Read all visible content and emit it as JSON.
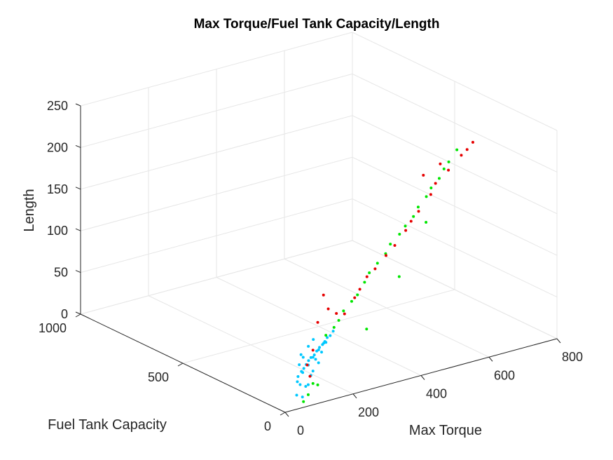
{
  "chart_data": {
    "type": "scatter3d",
    "title": "Max Torque/Fuel Tank Capacity/Length",
    "xlabel": "Max Torque",
    "ylabel": "Fuel Tank Capacity",
    "zlabel": "Length",
    "xlim": [
      0,
      800
    ],
    "ylim": [
      0,
      1000
    ],
    "zlim": [
      0,
      250
    ],
    "xticks": [
      "0",
      "200",
      "400",
      "600",
      "800"
    ],
    "yticks": [
      "0",
      "500",
      "1000"
    ],
    "zticks": [
      "0",
      "50",
      "100",
      "150",
      "200",
      "250"
    ],
    "grid": true,
    "series": [
      {
        "color": "#00c8ff",
        "points": [
          [
            60,
            20,
            40
          ],
          [
            80,
            30,
            45
          ],
          [
            100,
            40,
            50
          ],
          [
            120,
            45,
            55
          ],
          [
            140,
            50,
            60
          ],
          [
            50,
            20,
            35
          ],
          [
            70,
            25,
            42
          ],
          [
            90,
            35,
            48
          ],
          [
            110,
            40,
            52
          ],
          [
            130,
            48,
            58
          ],
          [
            150,
            55,
            62
          ],
          [
            160,
            60,
            65
          ],
          [
            45,
            15,
            30
          ],
          [
            65,
            22,
            38
          ],
          [
            85,
            28,
            44
          ],
          [
            105,
            38,
            50
          ],
          [
            125,
            44,
            56
          ],
          [
            145,
            52,
            61
          ],
          [
            55,
            18,
            25
          ],
          [
            75,
            24,
            20
          ],
          [
            95,
            32,
            30
          ],
          [
            115,
            42,
            46
          ],
          [
            135,
            46,
            52
          ],
          [
            155,
            58,
            60
          ],
          [
            40,
            10,
            15
          ],
          [
            60,
            15,
            10
          ],
          [
            80,
            20,
            22
          ],
          [
            100,
            30,
            35
          ],
          [
            120,
            36,
            42
          ],
          [
            170,
            62,
            66
          ],
          [
            180,
            64,
            70
          ],
          [
            60,
            22,
            60
          ],
          [
            70,
            28,
            55
          ],
          [
            90,
            36,
            65
          ],
          [
            110,
            45,
            70
          ],
          [
            50,
            14,
            50
          ]
        ]
      },
      {
        "color": "#00e600",
        "points": [
          [
            200,
            70,
            80
          ],
          [
            250,
            90,
            95
          ],
          [
            300,
            110,
            110
          ],
          [
            350,
            130,
            125
          ],
          [
            400,
            150,
            140
          ],
          [
            450,
            160,
            155
          ],
          [
            500,
            180,
            170
          ],
          [
            550,
            200,
            185
          ],
          [
            600,
            220,
            200
          ],
          [
            180,
            60,
            75
          ],
          [
            220,
            80,
            88
          ],
          [
            270,
            95,
            100
          ],
          [
            320,
            120,
            118
          ],
          [
            380,
            140,
            132
          ],
          [
            430,
            155,
            148
          ],
          [
            480,
            170,
            162
          ],
          [
            530,
            190,
            178
          ],
          [
            580,
            210,
            192
          ],
          [
            620,
            230,
            205
          ],
          [
            150,
            50,
            70
          ],
          [
            100,
            30,
            20
          ],
          [
            120,
            40,
            15
          ],
          [
            80,
            20,
            10
          ],
          [
            60,
            10,
            5
          ],
          [
            650,
            240,
            215
          ],
          [
            300,
            100,
            55
          ],
          [
            420,
            140,
            100
          ],
          [
            520,
            175,
            150
          ]
        ]
      },
      {
        "color": "#e60000",
        "points": [
          [
            220,
            75,
            85
          ],
          [
            280,
            100,
            105
          ],
          [
            340,
            125,
            120
          ],
          [
            410,
            145,
            138
          ],
          [
            470,
            165,
            158
          ],
          [
            540,
            185,
            180
          ],
          [
            610,
            215,
            198
          ],
          [
            680,
            240,
            212
          ],
          [
            700,
            245,
            218
          ],
          [
            160,
            55,
            100
          ],
          [
            140,
            45,
            120
          ],
          [
            120,
            40,
            90
          ],
          [
            100,
            30,
            60
          ],
          [
            190,
            65,
            90
          ],
          [
            260,
            92,
            98
          ],
          [
            310,
            115,
            115
          ],
          [
            380,
            138,
            130
          ],
          [
            450,
            158,
            150
          ],
          [
            500,
            178,
            165
          ],
          [
            560,
            195,
            190
          ],
          [
            580,
            205,
            210
          ],
          [
            520,
            188,
            205
          ],
          [
            660,
            235,
            208
          ],
          [
            90,
            28,
            30
          ],
          [
            80,
            25,
            45
          ]
        ]
      }
    ]
  }
}
